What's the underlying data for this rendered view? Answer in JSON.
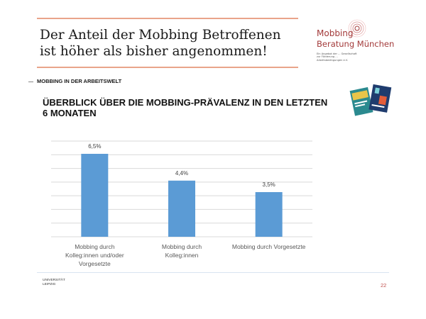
{
  "slide": {
    "title_line1": "Der Anteil der Mobbing Betroffenen",
    "title_line2": "ist höher als bisher angenommen!",
    "section": "MOBBING IN DER ARBEITSWELT",
    "heading_line1": "ÜBERBLICK ÜBER DIE MOBBING-PRÄVALENZ IN DEN LETZTEN",
    "heading_line2": "6 MONATEN",
    "page_number": "22",
    "colors": {
      "accent_rule": "#e9a48a",
      "bar": "#5b9bd5",
      "grid": "#d9d9d9",
      "logo_red": "#a33a3a"
    }
  },
  "logo": {
    "line1": "Mobbing",
    "line2": "Beratung München",
    "small_text": "Ein Angebot der ... Gesellschaft zur Förderung ... Arbeitsbedingungen e.V."
  },
  "footer": {
    "university_line1": "UNIVERSITÄT",
    "university_line2": "LEIPZIG"
  },
  "chart_data": {
    "type": "bar",
    "categories": [
      [
        "Mobbing durch",
        "Kolleg:innen und/oder",
        "Vorgesetzte"
      ],
      [
        "Mobbing durch",
        "Kolleg:innen"
      ],
      [
        "Mobbing durch Vorgesetzte"
      ]
    ],
    "values": [
      6.5,
      4.4,
      3.5
    ],
    "data_labels": [
      "6,5%",
      "4,4%",
      "3,5%"
    ],
    "ylim": [
      0,
      7.5
    ],
    "gridlines": 8,
    "grid": true,
    "title": "",
    "xlabel": "",
    "ylabel": ""
  }
}
